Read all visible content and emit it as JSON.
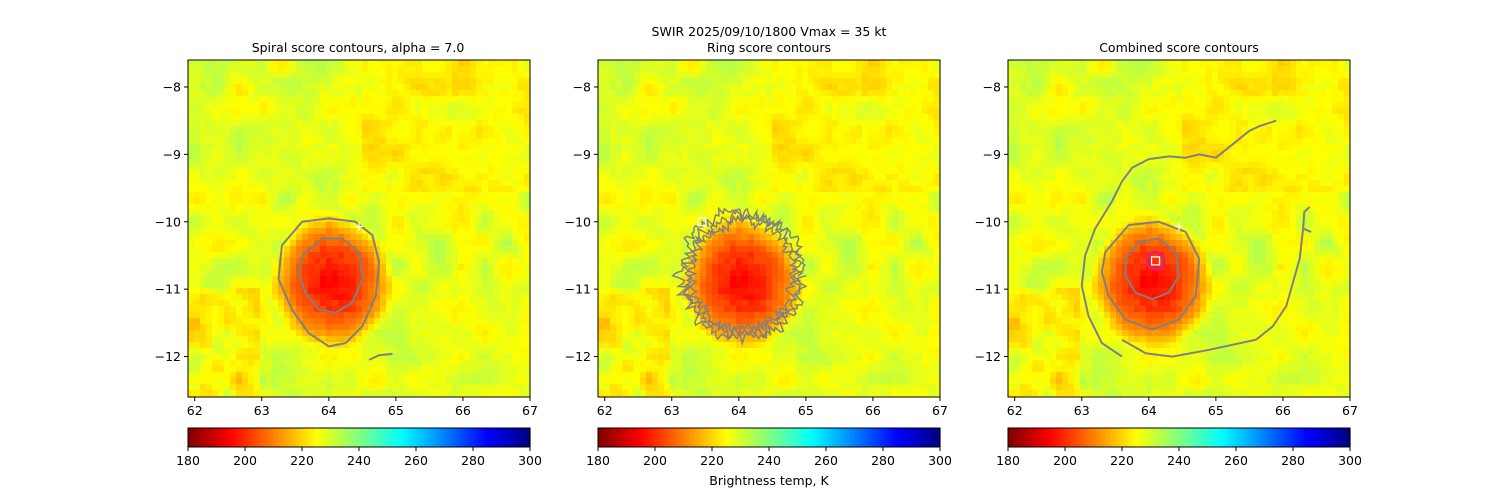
{
  "figure": {
    "suptitle_line1": "SWIR  2025/09/10/1800    Vmax = 35 kt",
    "colorbar_label": "Brightness temp, K"
  },
  "chart_data": [
    {
      "type": "heatmap",
      "title": "Spiral score contours, alpha =  7.0",
      "xlim": [
        61.9,
        67.0
      ],
      "ylim": [
        -12.6,
        -7.6
      ],
      "xticks": [
        62,
        63,
        64,
        65,
        66,
        67
      ],
      "yticks": [
        -8,
        -9,
        -10,
        -11,
        -12
      ],
      "xticklabels": [
        "62",
        "63",
        "64",
        "65",
        "66",
        "67"
      ],
      "yticklabels": [
        "−8",
        "−9",
        "−10",
        "−11",
        "−12"
      ],
      "colorbar": {
        "range": [
          180,
          300
        ],
        "ticks": [
          "180",
          "200",
          "220",
          "240",
          "260",
          "280",
          "300"
        ]
      },
      "cold_cloud": {
        "center": [
          64.05,
          -10.9
        ],
        "radius_lon": 0.95,
        "radius_lat": 1.0,
        "min_temp_K": 195,
        "ambient_temp_K": 228
      },
      "contour_color": "#808080",
      "contours": [
        [
          [
            63.3,
            -10.35
          ],
          [
            63.6,
            -10.0
          ],
          [
            64.0,
            -9.95
          ],
          [
            64.4,
            -10.0
          ],
          [
            64.65,
            -10.2
          ],
          [
            64.75,
            -10.6
          ],
          [
            64.7,
            -11.1
          ],
          [
            64.5,
            -11.55
          ],
          [
            64.25,
            -11.8
          ],
          [
            64.0,
            -11.85
          ],
          [
            63.7,
            -11.65
          ],
          [
            63.45,
            -11.3
          ],
          [
            63.25,
            -10.85
          ],
          [
            63.3,
            -10.35
          ]
        ],
        [
          [
            63.6,
            -10.5
          ],
          [
            63.9,
            -10.25
          ],
          [
            64.2,
            -10.25
          ],
          [
            64.45,
            -10.45
          ],
          [
            64.5,
            -10.85
          ],
          [
            64.35,
            -11.2
          ],
          [
            64.1,
            -11.35
          ],
          [
            63.85,
            -11.3
          ],
          [
            63.65,
            -11.05
          ],
          [
            63.55,
            -10.75
          ],
          [
            63.6,
            -10.5
          ]
        ],
        [
          [
            64.6,
            -12.05
          ],
          [
            64.75,
            -11.98
          ],
          [
            64.95,
            -11.96
          ]
        ]
      ],
      "markers": [
        {
          "kind": "plus",
          "lon": 64.45,
          "lat": -10.07,
          "color": "#ffffff"
        }
      ]
    },
    {
      "type": "heatmap",
      "title": "Ring score contours",
      "xlim": [
        61.9,
        67.0
      ],
      "ylim": [
        -12.6,
        -7.6
      ],
      "xticks": [
        62,
        63,
        64,
        65,
        66,
        67
      ],
      "yticks": [
        -8,
        -9,
        -10,
        -11,
        -12
      ],
      "xticklabels": [
        "62",
        "63",
        "64",
        "65",
        "66",
        "67"
      ],
      "yticklabels": [
        "−8",
        "−9",
        "−10",
        "−11",
        "−12"
      ],
      "colorbar": {
        "range": [
          180,
          300
        ],
        "ticks": [
          "180",
          "200",
          "220",
          "240",
          "260",
          "280",
          "300"
        ]
      },
      "cold_cloud": {
        "center": [
          64.05,
          -10.9
        ],
        "radius_lon": 0.95,
        "radius_lat": 1.0,
        "min_temp_K": 195,
        "ambient_temp_K": 228
      },
      "contour_color": "#808080",
      "ring_contour": {
        "center": [
          64.05,
          -10.8
        ],
        "radius_lon": 0.9,
        "radius_lat": 0.95,
        "noisy": true
      },
      "contours": [],
      "markers": [
        {
          "kind": "square",
          "lon": 63.45,
          "lat": -10.0,
          "color": "#ffffff"
        }
      ]
    },
    {
      "type": "heatmap",
      "title": "Combined score contours",
      "xlim": [
        61.9,
        67.0
      ],
      "ylim": [
        -12.6,
        -7.6
      ],
      "xticks": [
        62,
        63,
        64,
        65,
        66,
        67
      ],
      "yticks": [
        -8,
        -9,
        -10,
        -11,
        -12
      ],
      "xticklabels": [
        "62",
        "63",
        "64",
        "65",
        "66",
        "67"
      ],
      "yticklabels": [
        "−8",
        "−9",
        "−10",
        "−11",
        "−12"
      ],
      "colorbar": {
        "range": [
          180,
          300
        ],
        "ticks": [
          "180",
          "200",
          "220",
          "240",
          "260",
          "280",
          "300"
        ]
      },
      "cold_cloud": {
        "center": [
          64.05,
          -10.9
        ],
        "radius_lon": 0.95,
        "radius_lat": 1.0,
        "min_temp_K": 195,
        "ambient_temp_K": 228
      },
      "contour_color": "#808080",
      "contours": [
        [
          [
            63.6,
            -12.0
          ],
          [
            63.3,
            -11.8
          ],
          [
            63.1,
            -11.4
          ],
          [
            63.0,
            -10.95
          ],
          [
            63.05,
            -10.5
          ],
          [
            63.2,
            -10.1
          ],
          [
            63.45,
            -9.7
          ],
          [
            63.6,
            -9.4
          ],
          [
            63.75,
            -9.2
          ],
          [
            64.0,
            -9.07
          ],
          [
            64.3,
            -9.03
          ],
          [
            64.55,
            -9.05
          ],
          [
            64.75,
            -9.0
          ],
          [
            65.0,
            -9.05
          ],
          [
            65.25,
            -8.85
          ],
          [
            65.5,
            -8.65
          ],
          [
            65.65,
            -8.58
          ],
          [
            65.9,
            -8.5
          ]
        ],
        [
          [
            65.6,
            -11.75
          ],
          [
            64.9,
            -11.9
          ],
          [
            64.35,
            -12.0
          ],
          [
            63.95,
            -11.95
          ],
          [
            63.6,
            -11.75
          ]
        ],
        [
          [
            65.6,
            -11.75
          ],
          [
            65.85,
            -11.55
          ],
          [
            66.05,
            -11.25
          ],
          [
            66.15,
            -10.9
          ],
          [
            66.25,
            -10.55
          ],
          [
            66.3,
            -10.1
          ],
          [
            66.32,
            -9.85
          ],
          [
            66.4,
            -9.78
          ]
        ],
        [
          [
            66.3,
            -10.1
          ],
          [
            66.42,
            -10.15
          ]
        ],
        [
          [
            63.65,
            -10.55
          ],
          [
            63.85,
            -10.3
          ],
          [
            64.15,
            -10.25
          ],
          [
            64.4,
            -10.45
          ],
          [
            64.45,
            -10.8
          ],
          [
            64.3,
            -11.05
          ],
          [
            64.05,
            -11.15
          ],
          [
            63.8,
            -11.05
          ],
          [
            63.65,
            -10.8
          ],
          [
            63.65,
            -10.55
          ]
        ],
        [
          [
            63.35,
            -10.45
          ],
          [
            63.7,
            -10.05
          ],
          [
            64.15,
            -10.0
          ],
          [
            64.55,
            -10.15
          ],
          [
            64.75,
            -10.55
          ],
          [
            64.7,
            -11.1
          ],
          [
            64.45,
            -11.45
          ],
          [
            64.05,
            -11.6
          ],
          [
            63.65,
            -11.45
          ],
          [
            63.4,
            -11.1
          ],
          [
            63.3,
            -10.75
          ],
          [
            63.35,
            -10.45
          ]
        ]
      ],
      "markers": [
        {
          "kind": "plus",
          "lon": 64.45,
          "lat": -10.07,
          "color": "#ffffff"
        },
        {
          "kind": "ring",
          "lon": 64.1,
          "lat": -10.58,
          "color": "#e0207a",
          "radius_deg": 0.13
        },
        {
          "kind": "square",
          "lon": 64.1,
          "lat": -10.58,
          "color": "#ffffff"
        }
      ]
    }
  ]
}
